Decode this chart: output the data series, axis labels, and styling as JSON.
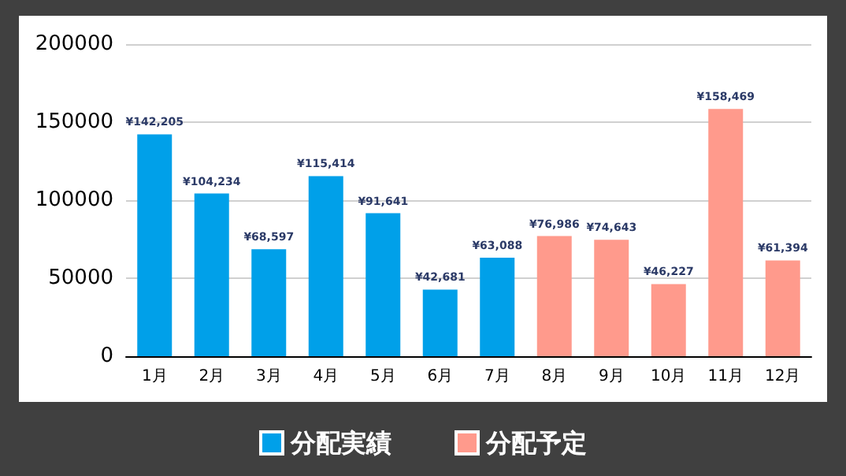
{
  "chart_data": {
    "type": "bar",
    "categories": [
      "1月",
      "2月",
      "3月",
      "4月",
      "5月",
      "6月",
      "7月",
      "8月",
      "9月",
      "10月",
      "11月",
      "12月"
    ],
    "series": [
      {
        "name": "分配実績",
        "color": "#00a0e9",
        "values": [
          142205,
          104234,
          68597,
          115414,
          91641,
          42681,
          63088,
          null,
          null,
          null,
          null,
          null
        ],
        "value_labels": [
          "¥142,205",
          "¥104,234",
          "¥68,597",
          "¥115,414",
          "¥91,641",
          "¥42,681",
          "¥63,088",
          null,
          null,
          null,
          null,
          null
        ]
      },
      {
        "name": "分配予定",
        "color": "#ff9a8c",
        "values": [
          null,
          null,
          null,
          null,
          null,
          null,
          null,
          76986,
          74643,
          46227,
          158469,
          61394
        ],
        "value_labels": [
          null,
          null,
          null,
          null,
          null,
          null,
          null,
          "¥76,986",
          "¥74,643",
          "¥46,227",
          "¥158,469",
          "¥61,394"
        ]
      }
    ],
    "ylim": [
      0,
      200000
    ],
    "yticks": [
      0,
      50000,
      100000,
      150000,
      200000
    ],
    "grid": "y",
    "legend": "bottom"
  }
}
